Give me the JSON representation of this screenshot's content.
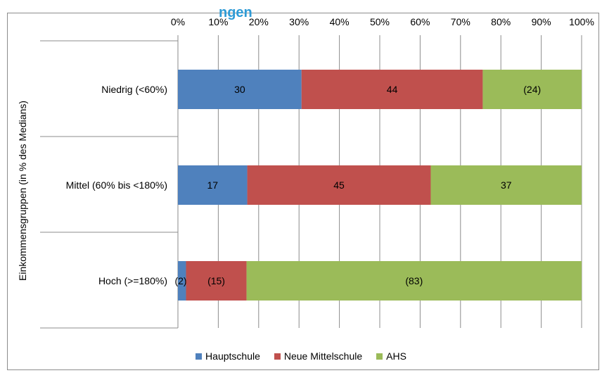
{
  "title_fragment": "ngen",
  "chart_data": {
    "type": "bar",
    "orientation": "horizontal",
    "stacked": true,
    "categories": [
      "Niedrig (<60%)",
      "Mittel (60% bis <180%)",
      "Hoch (>=180%)"
    ],
    "series": [
      {
        "name": "Hauptschule",
        "color": "#4f81bd",
        "values": [
          30,
          17,
          2
        ],
        "labels": [
          "30",
          "17",
          "(2)"
        ]
      },
      {
        "name": "Neue Mittelschule",
        "color": "#c0504d",
        "values": [
          44,
          45,
          15
        ],
        "labels": [
          "44",
          "45",
          "(15)"
        ]
      },
      {
        "name": "AHS",
        "color": "#9bbb59",
        "values": [
          24,
          37,
          83
        ],
        "labels": [
          "(24)",
          "37",
          "(83)"
        ]
      }
    ],
    "xticks": [
      "0%",
      "10%",
      "20%",
      "30%",
      "40%",
      "50%",
      "60%",
      "70%",
      "80%",
      "90%",
      "100%"
    ],
    "xlim": [
      0,
      100
    ],
    "ylabel": "Einkommensgruppen (in % des Medians)",
    "grid": true,
    "legend_position": "bottom"
  }
}
